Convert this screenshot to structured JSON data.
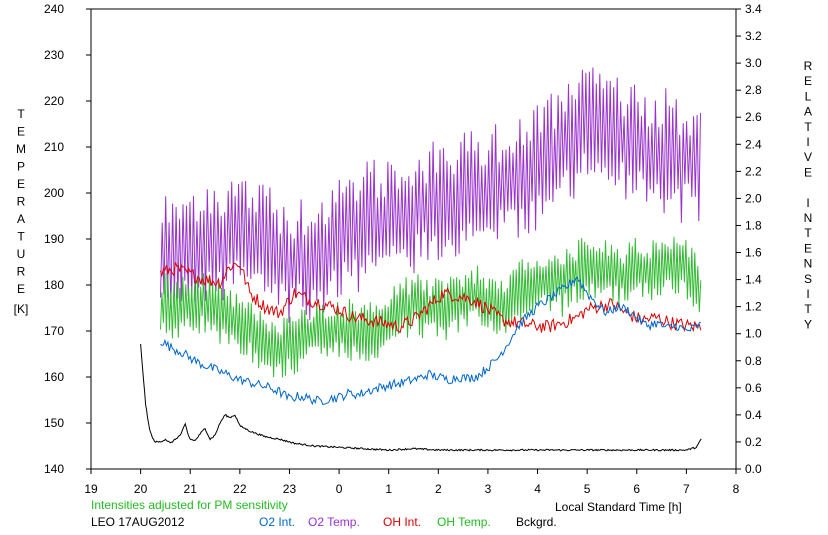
{
  "chart_data": {
    "type": "line",
    "title": "",
    "xlabel": "Local Standard Time [h]",
    "ylabel_left": "TEMPERATURE",
    "ylabel_left_unit": "[K]",
    "ylabel_right": "RELATIVE INTENSITY",
    "x_range": [
      19,
      32
    ],
    "x_tick_labels": [
      "19",
      "20",
      "21",
      "22",
      "23",
      "0",
      "1",
      "2",
      "3",
      "4",
      "5",
      "6",
      "7",
      "8"
    ],
    "ylim_left": [
      140,
      240
    ],
    "y_left_ticks": [
      "140",
      "150",
      "160",
      "170",
      "180",
      "190",
      "200",
      "210",
      "220",
      "230",
      "240"
    ],
    "ylim_right": [
      0,
      3.4
    ],
    "y_right_ticks": [
      "0.0",
      "0.2",
      "0.4",
      "0.6",
      "0.8",
      "1.0",
      "1.2",
      "1.4",
      "1.6",
      "1.8",
      "2.0",
      "2.2",
      "2.4",
      "2.6",
      "2.8",
      "3.0",
      "3.2",
      "3.4"
    ],
    "grid": false,
    "legend": "bottom",
    "note": "Intensities adjusted for PM sensitivity",
    "station_label": "LEO 17AUG2012",
    "series": [
      {
        "name": "O2 Int.",
        "axis": "right",
        "color": "#0066cc",
        "x": [
          20.4,
          20.6,
          20.8,
          21.0,
          21.2,
          21.4,
          21.6,
          21.8,
          22.0,
          22.2,
          22.4,
          22.6,
          22.8,
          23.0,
          23.2,
          23.4,
          23.6,
          23.8,
          24.0,
          24.2,
          24.4,
          24.6,
          24.8,
          25.0,
          25.2,
          25.4,
          25.6,
          25.8,
          26.0,
          26.2,
          26.4,
          26.6,
          26.8,
          27.0,
          27.2,
          27.4,
          27.6,
          27.8,
          28.0,
          28.2,
          28.4,
          28.6,
          28.8,
          29.0,
          29.2,
          29.4,
          29.6,
          29.8,
          30.0,
          30.2,
          30.4,
          30.6,
          30.8,
          31.0,
          31.2,
          31.3
        ],
        "y": [
          0.95,
          0.9,
          0.87,
          0.82,
          0.78,
          0.75,
          0.72,
          0.69,
          0.66,
          0.64,
          0.62,
          0.6,
          0.57,
          0.52,
          0.54,
          0.52,
          0.5,
          0.52,
          0.53,
          0.56,
          0.55,
          0.58,
          0.6,
          0.62,
          0.63,
          0.65,
          0.67,
          0.7,
          0.68,
          0.66,
          0.68,
          0.67,
          0.69,
          0.75,
          0.82,
          0.93,
          1.05,
          1.13,
          1.2,
          1.25,
          1.3,
          1.35,
          1.42,
          1.3,
          1.22,
          1.15,
          1.2,
          1.18,
          1.12,
          1.06,
          1.08,
          1.04,
          1.06,
          1.02,
          1.05,
          1.07
        ],
        "jitter": 0.035,
        "step": 0.03
      },
      {
        "name": "O2 Temp.",
        "axis": "left",
        "color": "#9933cc",
        "x": [
          20.4,
          20.7,
          21.0,
          21.3,
          21.6,
          21.9,
          22.2,
          22.5,
          22.8,
          23.1,
          23.4,
          23.7,
          24.0,
          24.3,
          24.6,
          24.9,
          25.2,
          25.5,
          25.8,
          26.1,
          26.4,
          26.7,
          27.0,
          27.3,
          27.6,
          27.9,
          28.2,
          28.5,
          28.8,
          29.1,
          29.4,
          29.7,
          30.0,
          30.3,
          30.6,
          30.9,
          31.2,
          31.3
        ],
        "y": [
          185,
          186,
          188,
          189,
          190,
          191,
          190,
          188,
          186,
          185,
          186,
          188,
          190,
          192,
          193,
          194,
          195,
          196,
          197,
          198,
          199,
          200,
          201,
          202,
          203,
          205,
          207,
          210,
          213,
          215,
          214,
          212,
          210,
          208,
          209,
          207,
          208,
          206
        ],
        "jitter": 14,
        "step": 0.035
      },
      {
        "name": "OH Int.",
        "axis": "right",
        "color": "#dd0000",
        "x": [
          20.4,
          20.7,
          21.0,
          21.3,
          21.6,
          21.8,
          22.0,
          22.2,
          22.5,
          22.8,
          23.1,
          23.4,
          23.7,
          24.0,
          24.3,
          24.6,
          24.9,
          25.2,
          25.5,
          25.8,
          26.1,
          26.4,
          26.7,
          27.0,
          27.3,
          27.6,
          27.9,
          28.2,
          28.5,
          28.8,
          29.0,
          29.2,
          29.5,
          29.8,
          30.1,
          30.4,
          30.7,
          31.0,
          31.3
        ],
        "y": [
          1.45,
          1.48,
          1.44,
          1.4,
          1.38,
          1.5,
          1.52,
          1.3,
          1.2,
          1.15,
          1.3,
          1.25,
          1.22,
          1.18,
          1.12,
          1.1,
          1.08,
          1.05,
          1.1,
          1.2,
          1.3,
          1.28,
          1.25,
          1.18,
          1.1,
          1.08,
          1.06,
          1.05,
          1.08,
          1.12,
          1.18,
          1.2,
          1.22,
          1.15,
          1.1,
          1.12,
          1.08,
          1.06,
          1.05
        ],
        "jitter": 0.05,
        "step": 0.03
      },
      {
        "name": "OH Temp.",
        "axis": "left",
        "color": "#33bb33",
        "x": [
          20.4,
          20.7,
          21.0,
          21.3,
          21.6,
          21.9,
          22.2,
          22.5,
          22.8,
          23.1,
          23.4,
          23.7,
          24.0,
          24.3,
          24.6,
          24.9,
          25.2,
          25.5,
          25.8,
          26.1,
          26.4,
          26.7,
          27.0,
          27.3,
          27.6,
          27.9,
          28.2,
          28.5,
          28.8,
          29.1,
          29.4,
          29.7,
          30.0,
          30.3,
          30.6,
          30.9,
          31.2,
          31.3
        ],
        "y": [
          176,
          175,
          177,
          176,
          174,
          172,
          170,
          168,
          166,
          167,
          169,
          170,
          171,
          170,
          169,
          172,
          174,
          176,
          175,
          174,
          176,
          178,
          176,
          175,
          178,
          180,
          181,
          180,
          183,
          184,
          183,
          182,
          184,
          183,
          185,
          184,
          181,
          177
        ],
        "jitter": 7,
        "step": 0.03
      },
      {
        "name": "Bckgrd.",
        "axis": "right",
        "color": "#000000",
        "x": [
          20.0,
          20.05,
          20.1,
          20.15,
          20.2,
          20.25,
          20.3,
          20.4,
          20.5,
          20.6,
          20.8,
          20.9,
          20.95,
          21.0,
          21.1,
          21.2,
          21.3,
          21.4,
          21.5,
          21.6,
          21.7,
          21.8,
          21.9,
          22.0,
          22.2,
          22.5,
          22.8,
          23.1,
          23.5,
          24.0,
          24.5,
          25.0,
          25.5,
          26.0,
          26.5,
          27.0,
          27.5,
          28.0,
          28.5,
          29.0,
          29.5,
          30.0,
          30.5,
          31.0,
          31.2,
          31.3
        ],
        "y": [
          0.92,
          0.7,
          0.48,
          0.35,
          0.27,
          0.22,
          0.2,
          0.2,
          0.22,
          0.19,
          0.25,
          0.33,
          0.26,
          0.22,
          0.21,
          0.26,
          0.3,
          0.22,
          0.25,
          0.34,
          0.4,
          0.38,
          0.4,
          0.32,
          0.28,
          0.24,
          0.22,
          0.19,
          0.17,
          0.16,
          0.15,
          0.14,
          0.15,
          0.14,
          0.14,
          0.14,
          0.14,
          0.14,
          0.14,
          0.14,
          0.14,
          0.14,
          0.14,
          0.14,
          0.16,
          0.22
        ],
        "jitter": 0.006,
        "step": 0.02
      }
    ]
  }
}
